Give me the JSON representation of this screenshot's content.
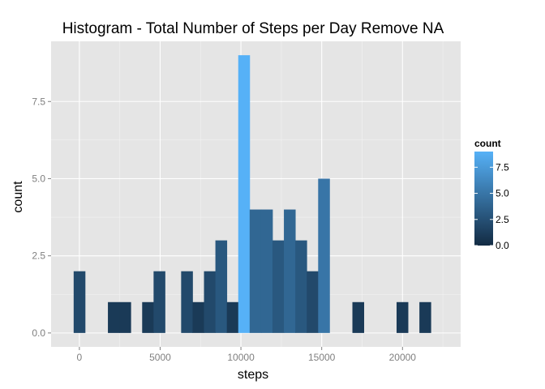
{
  "chart_data": {
    "type": "histogram",
    "title": "Histogram - Total Number of Steps per Day Remove NA",
    "xlabel": "steps",
    "ylabel": "count",
    "xlim": [
      -1750,
      23600
    ],
    "ylim": [
      -0.45,
      9.45
    ],
    "x_ticks": [
      0,
      5000,
      10000,
      15000,
      20000
    ],
    "x_tick_labels": [
      "0",
      "5000",
      "10000",
      "15000",
      "20000"
    ],
    "y_ticks": [
      0,
      2.5,
      5,
      7.5
    ],
    "y_tick_labels": [
      "0.0",
      "2.5",
      "5.0",
      "7.5"
    ],
    "bin_width": 707,
    "bins": [
      {
        "x": 0,
        "count": 2
      },
      {
        "x": 2120,
        "count": 1
      },
      {
        "x": 2827,
        "count": 1
      },
      {
        "x": 4240,
        "count": 1
      },
      {
        "x": 4947,
        "count": 2
      },
      {
        "x": 6653,
        "count": 2
      },
      {
        "x": 7360,
        "count": 1
      },
      {
        "x": 8067,
        "count": 2
      },
      {
        "x": 8773,
        "count": 3
      },
      {
        "x": 9480,
        "count": 1
      },
      {
        "x": 10187,
        "count": 9
      },
      {
        "x": 10893,
        "count": 4
      },
      {
        "x": 11600,
        "count": 4
      },
      {
        "x": 12307,
        "count": 3
      },
      {
        "x": 13013,
        "count": 4
      },
      {
        "x": 13720,
        "count": 3
      },
      {
        "x": 14427,
        "count": 2
      },
      {
        "x": 15133,
        "count": 5
      },
      {
        "x": 17253,
        "count": 1
      },
      {
        "x": 19987,
        "count": 1
      },
      {
        "x": 21400,
        "count": 1
      }
    ],
    "legend": {
      "title": "count",
      "ticks": [
        0,
        2.5,
        5,
        7.5
      ],
      "tick_labels": [
        "0.0",
        "2.5",
        "5.0",
        "7.5"
      ],
      "placement": "right",
      "range": [
        0,
        9
      ]
    },
    "colors": {
      "low": "#132b43",
      "high": "#56b1f7",
      "panel_background": "#e5e5e5",
      "grid_major": "#ffffff",
      "grid_minor": "#f2f2f2"
    },
    "grid": true
  }
}
